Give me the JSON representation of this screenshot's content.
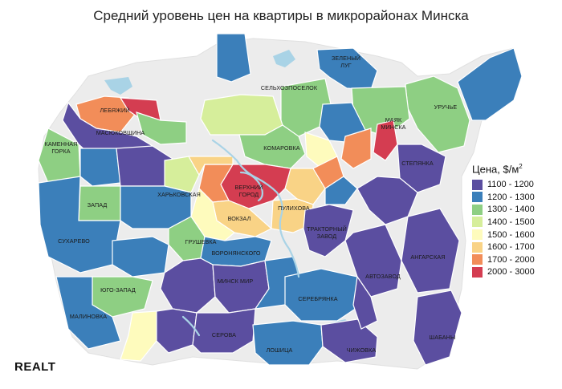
{
  "title": "Средний уровень цен на квартиры в микрорайонах Минска",
  "legend": {
    "title": "Цена, $/м",
    "title_sup": "2",
    "items": [
      {
        "label": "1100 - 1200",
        "color": "#5b4ea0"
      },
      {
        "label": "1200 - 1300",
        "color": "#3b7fba"
      },
      {
        "label": "1300 - 1400",
        "color": "#8ecf83"
      },
      {
        "label": "1400 - 1500",
        "color": "#d6ee9b"
      },
      {
        "label": "1500 - 1600",
        "color": "#fefbbd"
      },
      {
        "label": "1600 - 1700",
        "color": "#f9d386"
      },
      {
        "label": "1700 - 2000",
        "color": "#f28d59"
      },
      {
        "label": "2000 - 3000",
        "color": "#d43d51"
      }
    ]
  },
  "districts": {
    "zeleny_lug": "ЗЕЛЕНЫЙ ЛУГ",
    "selkhozposelok": "СЕЛЬХОЗПОСЕЛОК",
    "uruchye": "УРУЧЬЕ",
    "mayak_minska": "МАЯК МИНСКА",
    "lebyazhiy": "ЛЕБЯЖИЙ",
    "masyukovshchina": "МАСЮКОВЩИНА",
    "kamennaya_gorka": "КАМЕННАЯ ГОРКА",
    "komarovka": "КОМАРОВКА",
    "stepyanka": "СТЕПЯНКА",
    "kharkovskaya": "ХАРЬКОВСКАЯ",
    "verkhniy_gorod": "ВЕРХНИЙ ГОРОД",
    "zapad": "ЗАПАД",
    "pulikhova": "ПУЛИХОВА",
    "vokzal": "ВОКЗАЛ",
    "traktorny_zavod": "ТРАКТОРНЫЙ ЗАВОД",
    "sukharevo": "СУХАРЕВО",
    "grushevka": "ГРУШЕВКА",
    "voronyanskogo": "ВОРОНЯНСКОГО",
    "angarskaya": "АНГАРСКАЯ",
    "avtozavod": "АВТОЗАВОД",
    "minsk_mir": "МИНСК МИР",
    "yugo_zapad": "ЮГО-ЗАПАД",
    "serebryanka": "СЕРЕБРЯНКА",
    "malinovka": "МАЛИНОВКА",
    "serova": "СЕРОВА",
    "loshitsa": "ЛОШИЦА",
    "chizhovka": "ЧИЖОВКА",
    "shabany": "ШАБАНЫ"
  },
  "brand": "REALT"
}
